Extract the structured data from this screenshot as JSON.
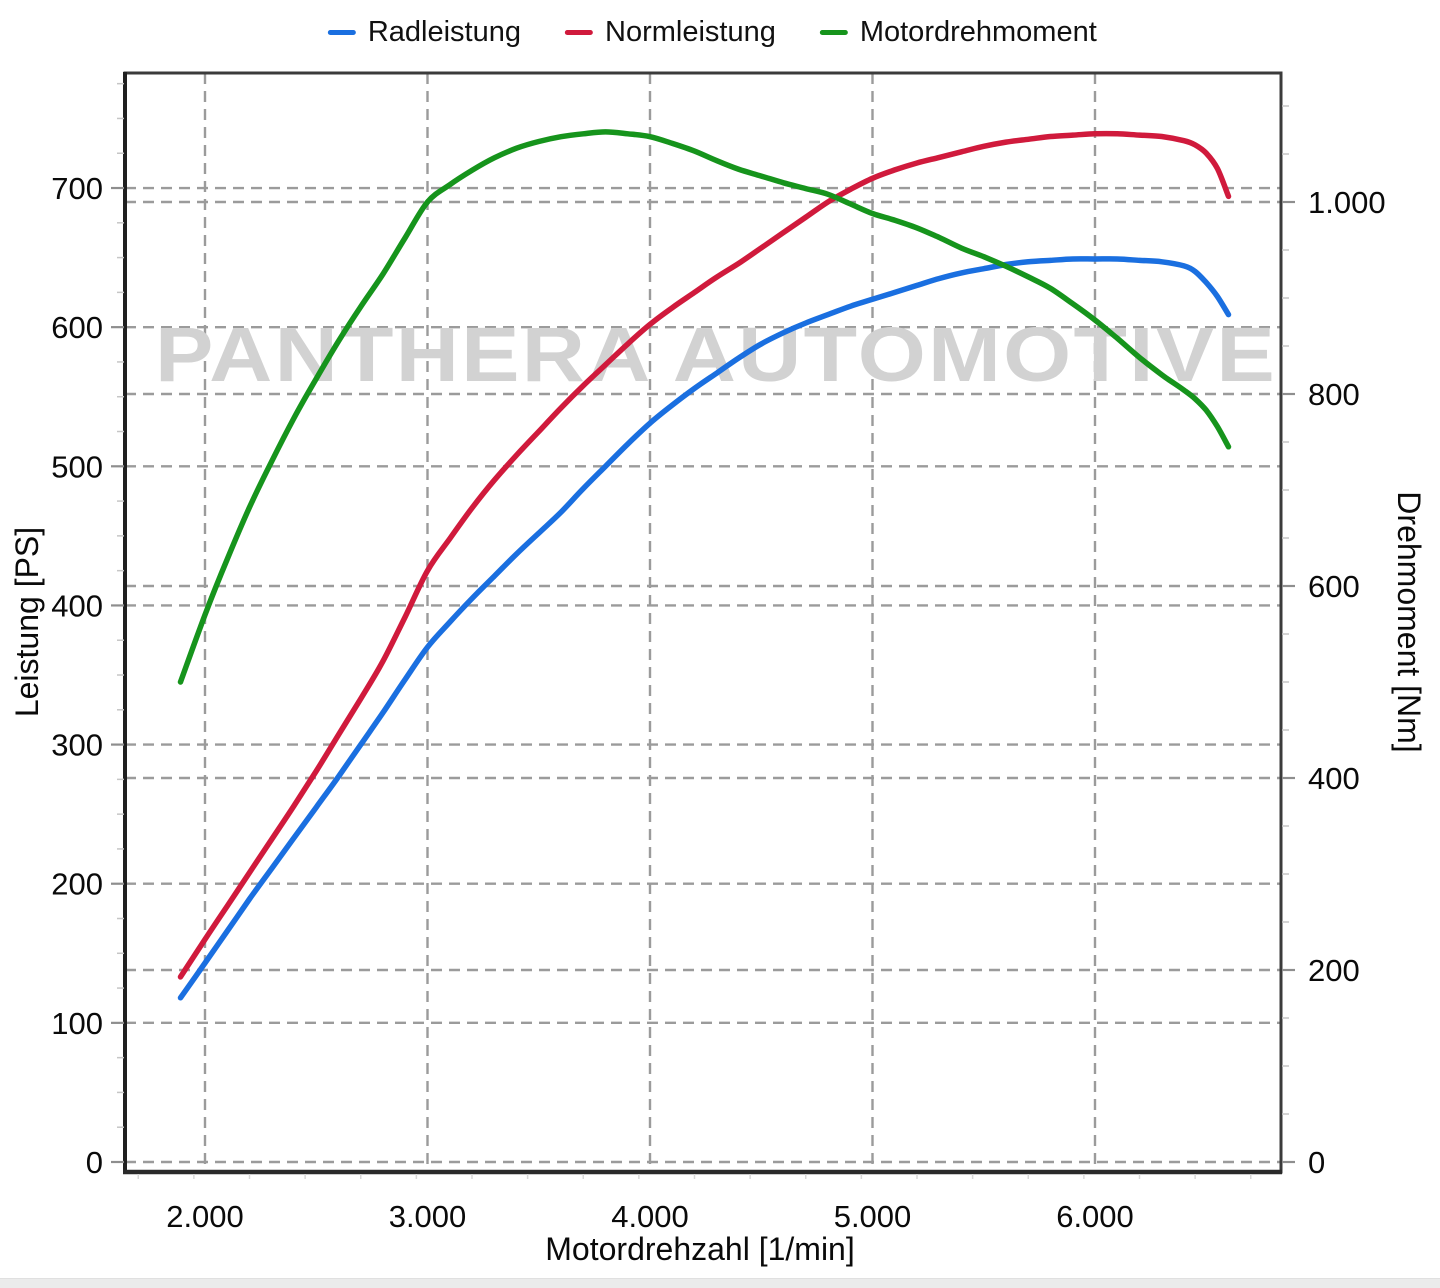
{
  "legend": {
    "items": [
      {
        "label": "Radleistung",
        "color": "#1a6fe0"
      },
      {
        "label": "Normleistung",
        "color": "#d01a3c"
      },
      {
        "label": "Motordrehmoment",
        "color": "#16941c"
      }
    ]
  },
  "watermark": "PANTHERA AUTOMOTIVE",
  "axes": {
    "x": {
      "title": "Motordrehzahl [1/min]",
      "ticks": [
        {
          "value": 2000,
          "label": "2.000"
        },
        {
          "value": 3000,
          "label": "3.000"
        },
        {
          "value": 4000,
          "label": "4.000"
        },
        {
          "value": 5000,
          "label": "5.000"
        },
        {
          "value": 6000,
          "label": "6.000"
        }
      ]
    },
    "left": {
      "title": "Leistung [PS]",
      "ticks": [
        {
          "value": 0,
          "label": "0"
        },
        {
          "value": 100,
          "label": "100"
        },
        {
          "value": 200,
          "label": "200"
        },
        {
          "value": 300,
          "label": "300"
        },
        {
          "value": 400,
          "label": "400"
        },
        {
          "value": 500,
          "label": "500"
        },
        {
          "value": 600,
          "label": "600"
        },
        {
          "value": 700,
          "label": "700"
        }
      ]
    },
    "right": {
      "title": "Drehmoment [Nm]",
      "ticks": [
        {
          "value": 0,
          "label": "0"
        },
        {
          "value": 200,
          "label": "200"
        },
        {
          "value": 400,
          "label": "400"
        },
        {
          "value": 600,
          "label": "600"
        },
        {
          "value": 800,
          "label": "800"
        },
        {
          "value": 1000,
          "label": "1.000"
        }
      ]
    }
  },
  "chart_data": {
    "type": "line",
    "x_unit": "1/min",
    "x_range": [
      1640,
      6830
    ],
    "left_axis": {
      "label": "Leistung [PS]",
      "range": [
        -7,
        782
      ]
    },
    "right_axis": {
      "label": "Drehmoment [Nm]",
      "range": [
        -10,
        1133
      ]
    },
    "grid": "dashed",
    "legend_position": "top",
    "series": [
      {
        "name": "Radleistung",
        "axis": "left",
        "unit": "PS",
        "color": "#1a6fe0",
        "peak": {
          "rpm": 6000,
          "value": 649
        },
        "points": [
          [
            1890,
            118
          ],
          [
            2000,
            143
          ],
          [
            2100,
            166
          ],
          [
            2200,
            189
          ],
          [
            2300,
            211
          ],
          [
            2400,
            233
          ],
          [
            2500,
            255
          ],
          [
            2600,
            277
          ],
          [
            2700,
            300
          ],
          [
            2800,
            323
          ],
          [
            2900,
            347
          ],
          [
            3000,
            370
          ],
          [
            3100,
            388
          ],
          [
            3200,
            405
          ],
          [
            3300,
            421
          ],
          [
            3400,
            437
          ],
          [
            3500,
            452
          ],
          [
            3600,
            467
          ],
          [
            3700,
            484
          ],
          [
            3800,
            500
          ],
          [
            3900,
            516
          ],
          [
            4000,
            531
          ],
          [
            4100,
            544
          ],
          [
            4200,
            556
          ],
          [
            4300,
            567
          ],
          [
            4400,
            578
          ],
          [
            4500,
            588
          ],
          [
            4600,
            596
          ],
          [
            4700,
            603
          ],
          [
            4800,
            609
          ],
          [
            4900,
            615
          ],
          [
            5000,
            620
          ],
          [
            5100,
            625
          ],
          [
            5200,
            630
          ],
          [
            5300,
            635
          ],
          [
            5400,
            639
          ],
          [
            5500,
            642
          ],
          [
            5600,
            645
          ],
          [
            5700,
            647
          ],
          [
            5800,
            648
          ],
          [
            5900,
            649
          ],
          [
            6000,
            649
          ],
          [
            6100,
            649
          ],
          [
            6200,
            648
          ],
          [
            6300,
            647
          ],
          [
            6400,
            644
          ],
          [
            6450,
            640
          ],
          [
            6500,
            632
          ],
          [
            6550,
            622
          ],
          [
            6600,
            609
          ]
        ]
      },
      {
        "name": "Normleistung",
        "axis": "left",
        "unit": "PS",
        "color": "#d01a3c",
        "peak": {
          "rpm": 6000,
          "value": 739
        },
        "points": [
          [
            1890,
            133
          ],
          [
            2000,
            160
          ],
          [
            2100,
            184
          ],
          [
            2200,
            208
          ],
          [
            2300,
            232
          ],
          [
            2400,
            256
          ],
          [
            2500,
            281
          ],
          [
            2600,
            307
          ],
          [
            2700,
            333
          ],
          [
            2800,
            360
          ],
          [
            2900,
            392
          ],
          [
            3000,
            425
          ],
          [
            3100,
            448
          ],
          [
            3200,
            470
          ],
          [
            3300,
            490
          ],
          [
            3400,
            508
          ],
          [
            3500,
            525
          ],
          [
            3600,
            542
          ],
          [
            3700,
            558
          ],
          [
            3800,
            573
          ],
          [
            3900,
            588
          ],
          [
            4000,
            602
          ],
          [
            4100,
            614
          ],
          [
            4200,
            625
          ],
          [
            4300,
            636
          ],
          [
            4400,
            646
          ],
          [
            4500,
            657
          ],
          [
            4600,
            668
          ],
          [
            4700,
            679
          ],
          [
            4800,
            690
          ],
          [
            4900,
            699
          ],
          [
            5000,
            707
          ],
          [
            5100,
            713
          ],
          [
            5200,
            718
          ],
          [
            5300,
            722
          ],
          [
            5400,
            726
          ],
          [
            5500,
            730
          ],
          [
            5600,
            733
          ],
          [
            5700,
            735
          ],
          [
            5800,
            737
          ],
          [
            5900,
            738
          ],
          [
            6000,
            739
          ],
          [
            6100,
            739
          ],
          [
            6200,
            738
          ],
          [
            6300,
            737
          ],
          [
            6400,
            734
          ],
          [
            6450,
            731
          ],
          [
            6500,
            725
          ],
          [
            6550,
            714
          ],
          [
            6600,
            694
          ]
        ]
      },
      {
        "name": "Motordrehmoment",
        "axis": "right",
        "unit": "Nm",
        "color": "#16941c",
        "peak": {
          "rpm": 3800,
          "value": 1073
        },
        "points": [
          [
            1890,
            500
          ],
          [
            2000,
            570
          ],
          [
            2100,
            628
          ],
          [
            2200,
            682
          ],
          [
            2300,
            730
          ],
          [
            2400,
            775
          ],
          [
            2500,
            816
          ],
          [
            2600,
            855
          ],
          [
            2700,
            891
          ],
          [
            2800,
            925
          ],
          [
            2900,
            963
          ],
          [
            3000,
            1000
          ],
          [
            3100,
            1018
          ],
          [
            3200,
            1033
          ],
          [
            3300,
            1046
          ],
          [
            3400,
            1056
          ],
          [
            3500,
            1063
          ],
          [
            3600,
            1068
          ],
          [
            3700,
            1071
          ],
          [
            3800,
            1073
          ],
          [
            3900,
            1071
          ],
          [
            4000,
            1068
          ],
          [
            4100,
            1061
          ],
          [
            4200,
            1053
          ],
          [
            4300,
            1043
          ],
          [
            4400,
            1034
          ],
          [
            4500,
            1027
          ],
          [
            4600,
            1020
          ],
          [
            4700,
            1014
          ],
          [
            4800,
            1008
          ],
          [
            4900,
            998
          ],
          [
            5000,
            988
          ],
          [
            5100,
            981
          ],
          [
            5200,
            973
          ],
          [
            5300,
            963
          ],
          [
            5400,
            952
          ],
          [
            5500,
            943
          ],
          [
            5600,
            933
          ],
          [
            5700,
            922
          ],
          [
            5800,
            910
          ],
          [
            5900,
            894
          ],
          [
            6000,
            877
          ],
          [
            6100,
            858
          ],
          [
            6200,
            838
          ],
          [
            6300,
            820
          ],
          [
            6350,
            812
          ],
          [
            6400,
            804
          ],
          [
            6450,
            795
          ],
          [
            6500,
            783
          ],
          [
            6550,
            766
          ],
          [
            6600,
            745
          ]
        ]
      }
    ]
  }
}
